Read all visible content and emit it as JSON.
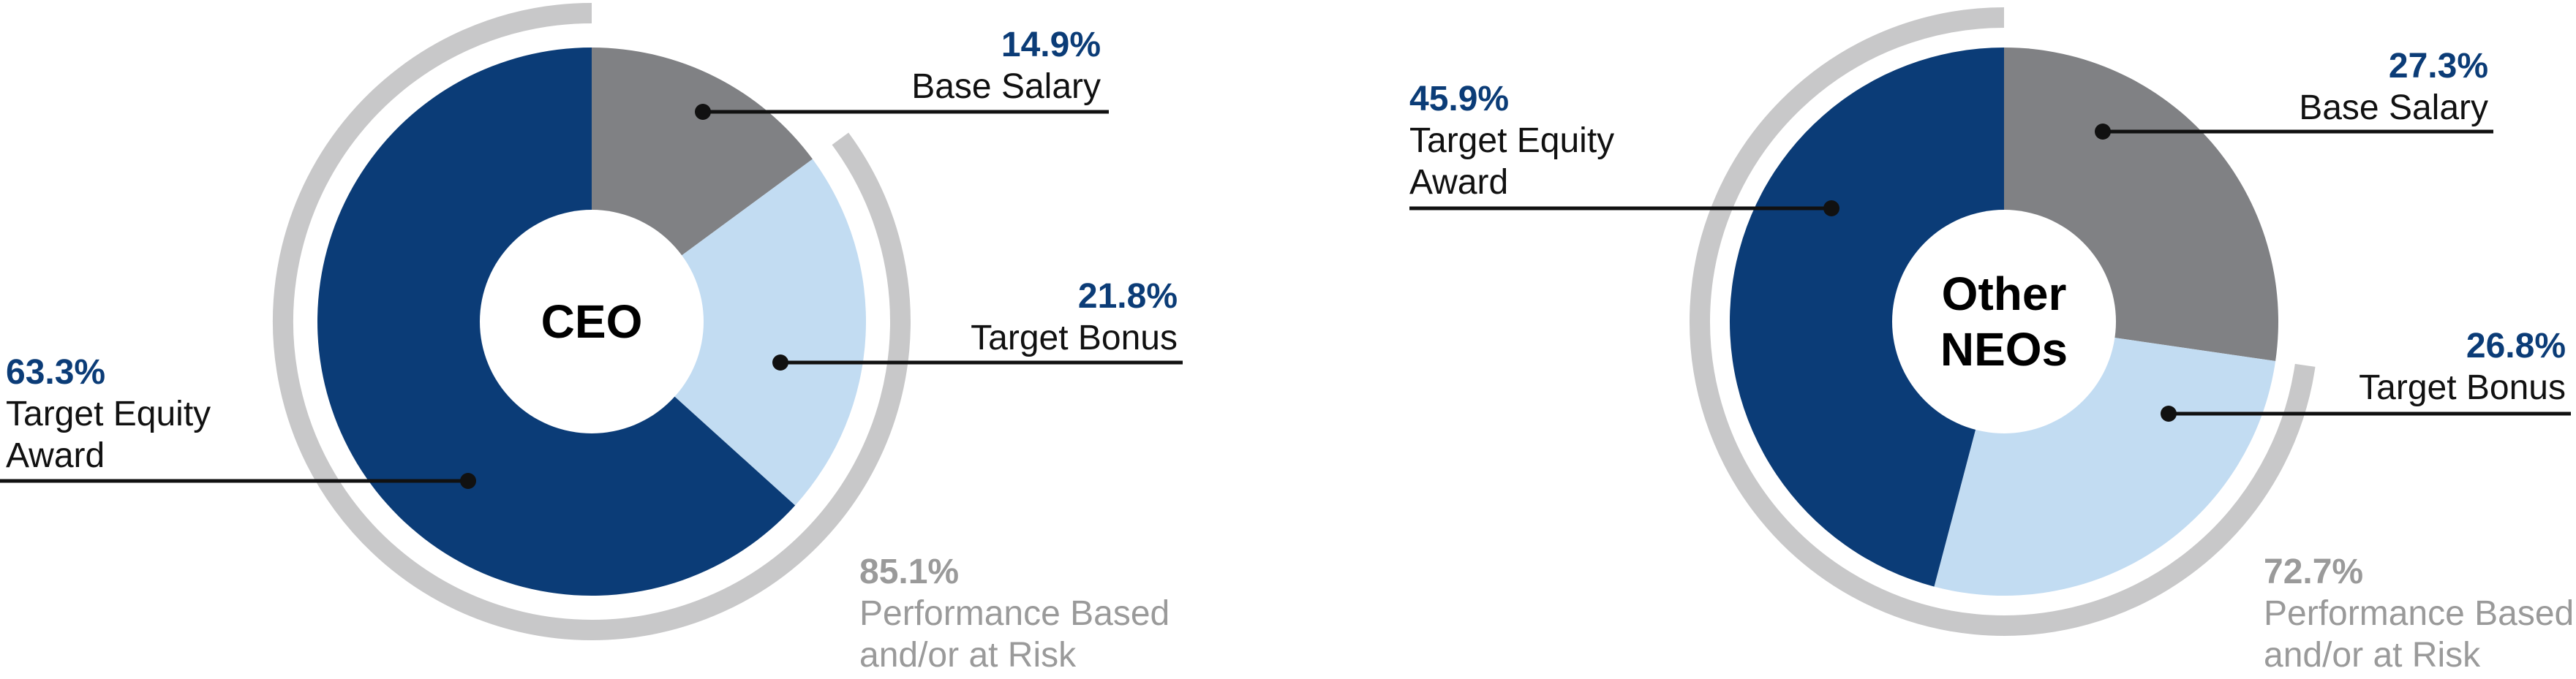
{
  "chart_data": [
    {
      "type": "pie",
      "center_label": "CEO",
      "categories": [
        "Base Salary",
        "Target Bonus",
        "Target Equity Award"
      ],
      "values": [
        14.9,
        21.8,
        63.3
      ],
      "value_labels": [
        "14.9%",
        "21.8%",
        "63.3%"
      ],
      "colors": [
        "#808184",
        "#c2dcf2",
        "#0b3c77"
      ],
      "at_risk": {
        "value": 85.1,
        "label": "85.1%",
        "text": "Performance Based and/or at Risk",
        "color": "#c8c8c9"
      }
    },
    {
      "type": "pie",
      "center_label": "Other NEOs",
      "categories": [
        "Base Salary",
        "Target Bonus",
        "Target Equity Award"
      ],
      "values": [
        27.3,
        26.8,
        45.9
      ],
      "value_labels": [
        "27.3%",
        "26.8%",
        "45.9%"
      ],
      "colors": [
        "#808184",
        "#c2dcf2",
        "#0b3c77"
      ],
      "at_risk": {
        "value": 72.7,
        "label": "72.7%",
        "text": "Performance Based and/or at Risk",
        "color": "#c8c8c9"
      }
    }
  ]
}
